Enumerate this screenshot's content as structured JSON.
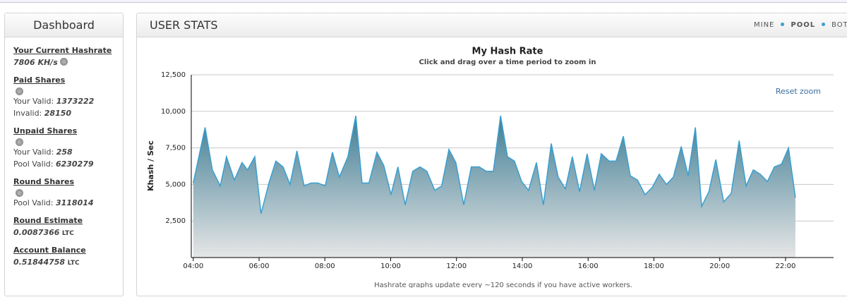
{
  "sidebar": {
    "title": "Dashboard",
    "sections": [
      {
        "heading": "Your Current Hashrate",
        "lines": [
          {
            "label": "",
            "value": "7806 KH/s"
          }
        ]
      },
      {
        "heading": "Paid Shares",
        "lines": [
          {
            "label": "Your Valid:",
            "value": "1373222"
          },
          {
            "label": "Invalid:",
            "value": "28150"
          }
        ]
      },
      {
        "heading": "Unpaid Shares",
        "lines": [
          {
            "label": "Your Valid:",
            "value": "258"
          },
          {
            "label": "Pool Valid:",
            "value": "6230279"
          }
        ]
      },
      {
        "heading": "Round Shares",
        "lines": [
          {
            "label": "Pool Valid:",
            "value": "3118014"
          }
        ]
      },
      {
        "heading": "Round Estimate",
        "lines": [
          {
            "label": "",
            "value": "0.0087366",
            "unit": "LTC"
          }
        ]
      },
      {
        "heading": "Account Balance",
        "lines": [
          {
            "label": "",
            "value": "0.51844758",
            "unit": "LTC"
          }
        ]
      }
    ]
  },
  "panel": {
    "title": "USER STATS",
    "tabs": [
      "MINE",
      "POOL",
      "BOTH"
    ],
    "footer": "Hashrate graphs update every ~120 seconds if you have active workers.",
    "reset": "Reset zoom"
  },
  "chart_data": {
    "type": "area",
    "title": "My Hash Rate",
    "subtitle": "Click and drag over a time period to zoom in",
    "y_label": "Khash / Sec",
    "color": "#3a9fd0",
    "x": [
      4.0,
      4.36,
      4.58,
      4.82,
      5.01,
      5.25,
      5.48,
      5.65,
      5.87,
      6.06,
      6.3,
      6.51,
      6.73,
      6.94,
      7.15,
      7.37,
      7.58,
      7.79,
      8.01,
      8.23,
      8.44,
      8.7,
      8.94,
      9.13,
      9.34,
      9.58,
      9.79,
      10.01,
      10.22,
      10.44,
      10.67,
      10.89,
      11.1,
      11.34,
      11.55,
      11.77,
      11.98,
      12.22,
      12.45,
      12.69,
      12.91,
      13.12,
      13.34,
      13.55,
      13.76,
      13.98,
      14.19,
      14.43,
      14.64,
      14.88,
      15.09,
      15.31,
      15.52,
      15.74,
      15.97,
      16.19,
      16.4,
      16.64,
      16.85,
      17.07,
      17.28,
      17.5,
      17.73,
      17.95,
      18.16,
      18.38,
      18.59,
      18.83,
      19.04,
      19.26,
      19.45,
      19.67,
      19.88,
      20.12,
      20.35,
      20.59,
      20.8,
      21.02,
      21.23,
      21.45,
      21.66,
      21.88,
      22.09,
      22.3
    ],
    "values": [
      5100,
      8900,
      6000,
      4900,
      6900,
      5300,
      6500,
      6000,
      6900,
      3000,
      5100,
      6600,
      6200,
      5000,
      7300,
      4900,
      5100,
      5100,
      4900,
      7200,
      5500,
      6900,
      9700,
      5100,
      5100,
      7200,
      6300,
      4300,
      6200,
      3600,
      5900,
      6200,
      5900,
      4600,
      4900,
      7400,
      6500,
      3600,
      6200,
      6200,
      5900,
      5900,
      9700,
      6900,
      6600,
      5200,
      4600,
      6500,
      3600,
      7800,
      5500,
      4700,
      6900,
      4500,
      7100,
      4600,
      7100,
      6600,
      6600,
      8300,
      5600,
      5300,
      4300,
      4800,
      5700,
      5000,
      5500,
      7600,
      5600,
      8900,
      3500,
      4500,
      6700,
      3800,
      4400,
      8000,
      4900,
      6000,
      5700,
      5200,
      6200,
      6400,
      7500,
      4100
    ],
    "xlim": [
      3.94,
      23.46
    ],
    "xticks": [
      {
        "value": 4,
        "label": "04:00"
      },
      {
        "value": 6,
        "label": "06:00"
      },
      {
        "value": 8,
        "label": "08:00"
      },
      {
        "value": 10,
        "label": "10:00"
      },
      {
        "value": 12,
        "label": "12:00"
      },
      {
        "value": 14,
        "label": "14:00"
      },
      {
        "value": 16,
        "label": "16:00"
      },
      {
        "value": 18,
        "label": "18:00"
      },
      {
        "value": 20,
        "label": "20:00"
      },
      {
        "value": 22,
        "label": "22:00"
      }
    ],
    "ylim": [
      0,
      12500
    ],
    "yticks": [
      {
        "value": 2500,
        "label": "2,500"
      },
      {
        "value": 5000,
        "label": "5,000"
      },
      {
        "value": 7500,
        "label": "7,500"
      },
      {
        "value": 10000,
        "label": "10,000"
      },
      {
        "value": 12500,
        "label": "12,500"
      }
    ],
    "grid": true
  }
}
